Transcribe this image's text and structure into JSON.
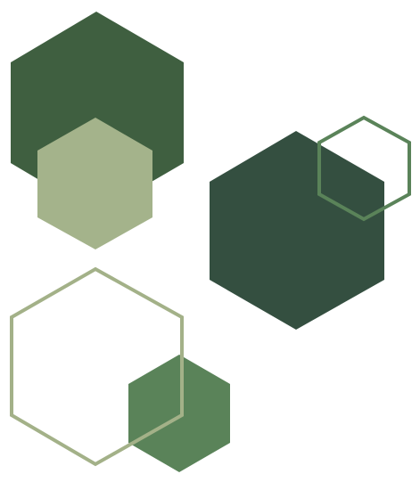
{
  "palette": {
    "background": "#ffffff",
    "dark_green": "#3f5f40",
    "darker_green": "#344f40",
    "sage_light": "#a4b38b",
    "mid_green": "#5a8359",
    "outline_green": "#5a8359",
    "outline_sage": "#a3b188"
  },
  "shapes": [
    {
      "name": "top-left-dark-hexagon",
      "style": "filled",
      "color_key": "dark_green"
    },
    {
      "name": "top-left-sage-hexagon",
      "style": "filled",
      "color_key": "sage_light"
    },
    {
      "name": "right-dark-hexagon",
      "style": "filled",
      "color_key": "darker_green"
    },
    {
      "name": "right-outline-hexagon",
      "style": "outline",
      "color_key": "outline_green"
    },
    {
      "name": "bottom-mid-green-hexagon",
      "style": "filled",
      "color_key": "mid_green"
    },
    {
      "name": "bottom-outline-hexagon",
      "style": "outline",
      "color_key": "outline_sage"
    }
  ]
}
